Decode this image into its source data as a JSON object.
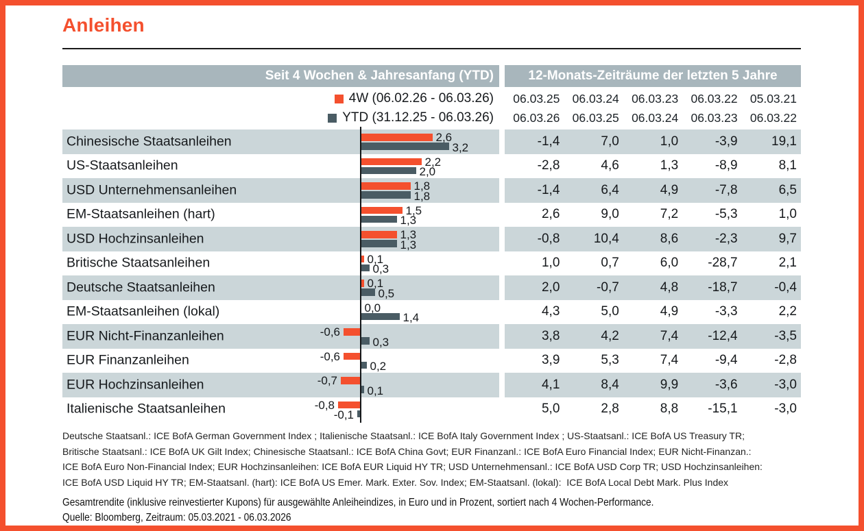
{
  "page": {
    "title": "Anleihen"
  },
  "header": {
    "left": "Seit 4 Wochen & Jahresanfang (YTD)",
    "right": "12-Monats-Zeiträume der letzten 5 Jahre"
  },
  "legend": [
    {
      "name": "4W",
      "label": "4W (06.02.26 - 06.03.26)",
      "color": "#F4502E"
    },
    {
      "name": "YTD",
      "label": "YTD (31.12.25 - 06.03.26)",
      "color": "#4A5C64"
    }
  ],
  "period_headers": {
    "rows": [
      [
        "06.03.25",
        "06.03.24",
        "06.03.23",
        "06.03.22",
        "05.03.21"
      ],
      [
        "06.03.26",
        "06.03.25",
        "06.03.24",
        "06.03.23",
        "06.03.22"
      ]
    ]
  },
  "chart_data": {
    "type": "bar",
    "orientation": "horizontal",
    "unit": "percent",
    "title": "Anleihen",
    "sort": "nach 4 Wochen-Performance absteigend",
    "xlim": [
      -1.5,
      4.5
    ],
    "categories": [
      "Chinesische Staatsanleihen",
      "US-Staatsanleihen",
      "USD Unternehmensanleihen",
      "EM-Staatsanleihen (hart)",
      "USD Hochzinsanleihen",
      "Britische Staatsanleihen",
      "Deutsche Staatsanleihen",
      "EM-Staatsanleihen (lokal)",
      "EUR Nicht-Finanzanleihen",
      "EUR Finanzanleihen",
      "EUR Hochzinsanleihen",
      "Italienische Staatsanleihen"
    ],
    "series": [
      {
        "name": "4W (06.02.26 - 06.03.26)",
        "color": "#F4502E",
        "values": [
          2.6,
          2.2,
          1.8,
          1.5,
          1.3,
          0.1,
          0.1,
          0.0,
          -0.6,
          -0.6,
          -0.7,
          -0.8
        ]
      },
      {
        "name": "YTD (31.12.25 - 06.03.26)",
        "color": "#4A5C64",
        "values": [
          3.2,
          2.0,
          1.8,
          1.3,
          1.3,
          0.3,
          0.5,
          1.4,
          0.3,
          0.2,
          0.1,
          -0.1
        ]
      }
    ],
    "table": {
      "column_headers_top": [
        "06.03.25",
        "06.03.24",
        "06.03.23",
        "06.03.22",
        "05.03.21"
      ],
      "column_headers_bottom": [
        "06.03.26",
        "06.03.25",
        "06.03.24",
        "06.03.23",
        "06.03.22"
      ],
      "values": [
        [
          -1.4,
          7.0,
          1.0,
          -3.9,
          19.1
        ],
        [
          -2.8,
          4.6,
          1.3,
          -8.9,
          8.1
        ],
        [
          -1.4,
          6.4,
          4.9,
          -7.8,
          6.5
        ],
        [
          2.6,
          9.0,
          7.2,
          -5.3,
          1.0
        ],
        [
          -0.8,
          10.4,
          8.6,
          -2.3,
          9.7
        ],
        [
          1.0,
          0.7,
          6.0,
          -28.7,
          2.1
        ],
        [
          2.0,
          -0.7,
          4.8,
          -18.7,
          -0.4
        ],
        [
          4.3,
          5.0,
          4.9,
          -3.3,
          2.2
        ],
        [
          3.8,
          4.2,
          7.4,
          -12.4,
          -3.5
        ],
        [
          3.9,
          5.3,
          7.4,
          -9.4,
          -2.8
        ],
        [
          4.1,
          8.4,
          9.9,
          -3.6,
          -3.0
        ],
        [
          5.0,
          2.8,
          8.8,
          -15.1,
          -3.0
        ]
      ]
    }
  },
  "footnotes": [
    "Deutsche Staatsanl.: ICE BofA German Government Index ; Italienische Staatsanl.: ICE BofA Italy Government Index ; US-Staatsanl.: ICE BofA US Treasury TR;",
    "Britische Staatsanl.: ICE BofA UK Gilt Index; Chinesische Staatsanl.: ICE BofA China Govt; EUR Finanzanl.: ICE BofA Euro Financial Index; EUR Nicht-Finanzan.:",
    "ICE BofA Euro Non-Financial Index; EUR Hochzinsanleihen: ICE BofA EUR Liquid HY TR; USD Unternehmensanl.: ICE BofA USD Corp TR; USD Hochzinsanleihen:",
    "ICE BofA USD Liquid HY TR; EM-Staatsanl. (hart): ICE BofA US Emer. Mark. Exter. Sov. Index; EM-Staatsanl. (lokal):  ICE BofA Local Debt Mark. Plus Index"
  ],
  "notes": {
    "description": "Gesamtrendite (inklusive reinvestierter Kupons) für ausgewählte Anleiheindizes, in Euro und in Prozent, sortiert nach 4 Wochen-Performance.",
    "source": "Quelle: Bloomberg, Zeitraum: 05.03.2021 - 06.03.2026"
  },
  "colors": {
    "accent": "#F4502E",
    "ytd_bar": "#4A5C64",
    "header_bg": "#A8B6BC",
    "stripe_bg": "#CBD6D9",
    "text": "#16191c"
  }
}
